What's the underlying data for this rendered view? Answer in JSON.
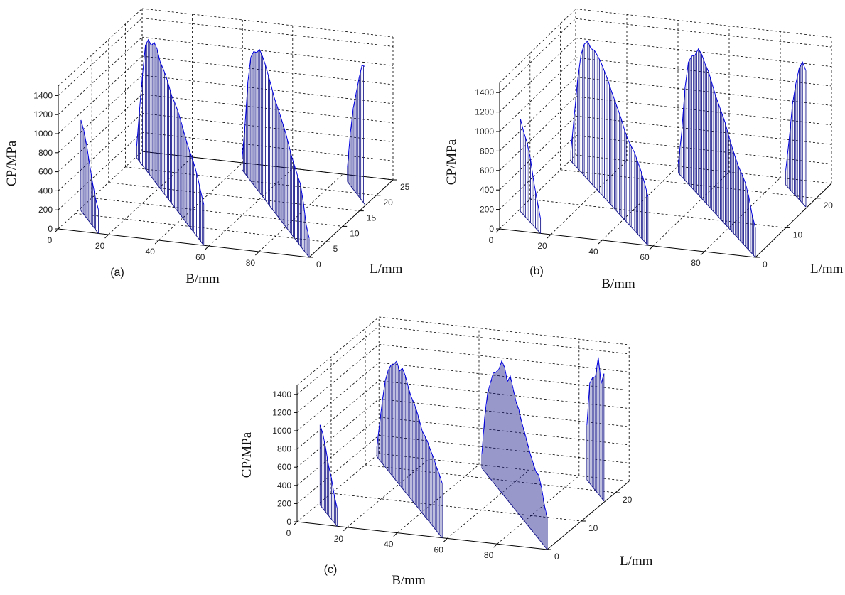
{
  "chart_data": [
    {
      "type": "3d-stem",
      "panel_label": "(a)",
      "xlabel": "B/mm",
      "ylabel": "L/mm",
      "zlabel": "CP/MPa",
      "xlim": [
        0,
        100
      ],
      "ylim": [
        0,
        25
      ],
      "zlim": [
        0,
        1500
      ],
      "xticks": [
        "0",
        "20",
        "40",
        "60",
        "80"
      ],
      "yticks": [
        "0",
        "5",
        "10",
        "15",
        "20",
        "25"
      ],
      "zticks": [
        "0",
        "200",
        "400",
        "600",
        "800",
        "1000",
        "1200",
        "1400"
      ],
      "grid": true,
      "strips": [
        {
          "B_at_L0": 16,
          "L": [
            0,
            1,
            2,
            3,
            4,
            5,
            6
          ],
          "CP": [
            250,
            330,
            450,
            600,
            760,
            880,
            950
          ]
        },
        {
          "B_at_L0": 58,
          "L": [
            0,
            1,
            2,
            3,
            4,
            5,
            6,
            7,
            8,
            9,
            10,
            11,
            12,
            13,
            14,
            15,
            16,
            17,
            18,
            19,
            20,
            21,
            22,
            23
          ],
          "CP": [
            430,
            520,
            620,
            700,
            760,
            800,
            860,
            930,
            1000,
            1060,
            1100,
            1130,
            1200,
            1260,
            1300,
            1330,
            1420,
            1450,
            1380,
            1400,
            1300,
            950,
            550,
            120
          ]
        },
        {
          "B_at_L0": 100,
          "L": [
            0,
            1,
            2,
            3,
            4,
            5,
            6,
            7,
            8,
            9,
            10,
            11,
            12,
            13,
            14,
            15,
            16,
            17,
            18,
            19,
            20,
            21,
            22,
            23
          ],
          "CP": [
            200,
            300,
            500,
            650,
            700,
            760,
            820,
            900,
            980,
            1040,
            1100,
            1150,
            1200,
            1280,
            1350,
            1420,
            1470,
            1500,
            1430,
            1400,
            1300,
            1000,
            500,
            100
          ]
        },
        {
          "B_at_L0": 142,
          "L": [
            17,
            18,
            19,
            20,
            21,
            22,
            23
          ],
          "CP": [
            1450,
            1420,
            1250,
            1050,
            850,
            550,
            150
          ]
        }
      ]
    },
    {
      "type": "3d-stem",
      "panel_label": "(b)",
      "xlabel": "B/mm",
      "ylabel": "L/mm",
      "zlabel": "CP/MPa",
      "xlim": [
        0,
        100
      ],
      "ylim": [
        0,
        25
      ],
      "zlim": [
        0,
        1500
      ],
      "xticks": [
        "0",
        "20",
        "40",
        "60",
        "80"
      ],
      "yticks": [
        "0",
        "10",
        "20"
      ],
      "zticks": [
        "0",
        "200",
        "400",
        "600",
        "800",
        "1000",
        "1200",
        "1400"
      ],
      "grid": true,
      "strips": [
        {
          "B_at_L0": 16,
          "L": [
            0,
            1,
            2,
            3,
            4,
            5,
            6
          ],
          "CP": [
            150,
            300,
            450,
            650,
            780,
            850,
            950
          ]
        },
        {
          "B_at_L0": 58,
          "L": [
            0,
            1,
            2,
            3,
            4,
            5,
            6,
            7,
            8,
            9,
            10,
            11,
            12,
            13,
            14,
            15,
            16,
            17,
            18,
            19,
            20,
            21,
            22,
            23
          ],
          "CP": [
            500,
            600,
            680,
            740,
            800,
            830,
            860,
            920,
            1000,
            1060,
            1120,
            1180,
            1250,
            1300,
            1350,
            1380,
            1400,
            1380,
            1420,
            1350,
            1200,
            900,
            500,
            100
          ]
        },
        {
          "B_at_L0": 100,
          "L": [
            0,
            1,
            2,
            3,
            4,
            5,
            6,
            7,
            8,
            9,
            10,
            11,
            12,
            13,
            14,
            15,
            16,
            17,
            18,
            19,
            20,
            21,
            22,
            23
          ],
          "CP": [
            300,
            400,
            550,
            650,
            700,
            740,
            800,
            870,
            950,
            1040,
            1100,
            1160,
            1220,
            1300,
            1380,
            1420,
            1480,
            1500,
            1400,
            1350,
            1250,
            950,
            450,
            100
          ]
        },
        {
          "B_at_L0": 142,
          "L": [
            17,
            18,
            19,
            20,
            21,
            22,
            23
          ],
          "CP": [
            1400,
            1450,
            1350,
            1150,
            900,
            500,
            150
          ]
        }
      ]
    },
    {
      "type": "3d-stem",
      "panel_label": "(c)",
      "xlabel": "B/mm",
      "ylabel": "L/mm",
      "zlabel": "CP/MPa",
      "xlim": [
        0,
        100
      ],
      "ylim": [
        0,
        24
      ],
      "zlim": [
        0,
        1500
      ],
      "xticks": [
        "0",
        "20",
        "40",
        "60",
        "80"
      ],
      "yticks": [
        "0",
        "10",
        "20"
      ],
      "zticks": [
        "0",
        "200",
        "400",
        "600",
        "800",
        "1000",
        "1200",
        "1400"
      ],
      "grid": true,
      "strips": [
        {
          "B_at_L0": 16,
          "L": [
            0,
            1,
            2,
            3,
            4,
            5,
            6
          ],
          "CP": [
            200,
            300,
            450,
            550,
            700,
            820,
            880
          ]
        },
        {
          "B_at_L0": 58,
          "L": [
            0,
            1,
            2,
            3,
            4,
            5,
            6,
            7,
            8,
            9,
            10,
            11,
            12,
            13,
            14,
            15,
            16,
            17,
            18,
            19,
            20,
            21,
            22,
            23
          ],
          "CP": [
            600,
            660,
            700,
            760,
            800,
            850,
            880,
            900,
            980,
            1050,
            1100,
            1130,
            1200,
            1280,
            1320,
            1250,
            1320,
            1250,
            1200,
            1100,
            950,
            700,
            400,
            100
          ]
        },
        {
          "B_at_L0": 100,
          "L": [
            0,
            1,
            2,
            3,
            4,
            5,
            6,
            7,
            8,
            9,
            10,
            11,
            12,
            13,
            14,
            15,
            16,
            17,
            18,
            19,
            20,
            21,
            22,
            23
          ],
          "CP": [
            350,
            450,
            600,
            700,
            700,
            760,
            820,
            900,
            980,
            1050,
            1150,
            1200,
            1300,
            1400,
            1300,
            1420,
            1450,
            1320,
            1250,
            1200,
            1050,
            900,
            600,
            150
          ]
        },
        {
          "B_at_L0": 142,
          "L": [
            17,
            18,
            19,
            20,
            21,
            22,
            23
          ],
          "CP": [
            1400,
            1250,
            1500,
            1250,
            1200,
            1100,
            600
          ]
        }
      ]
    }
  ],
  "colors": {
    "stem": "#1a1a8c",
    "curve": "#0000e0",
    "axis": "#000000",
    "grid": "#000000"
  }
}
